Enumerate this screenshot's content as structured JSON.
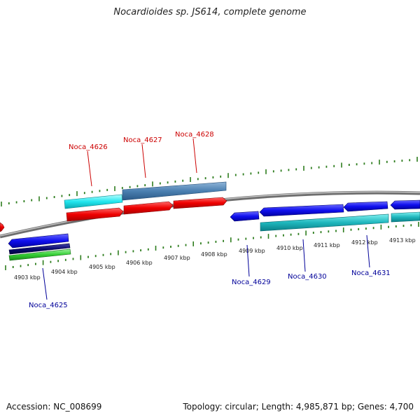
{
  "title": "Nocardioides sp. JS614, complete genome",
  "footer": {
    "accession": "Accession: NC_008699",
    "summary": "Topology: circular; Length: 4,985,871 bp; Genes: 4,700"
  },
  "colors": {
    "forward_label": "#cc0000",
    "reverse_label": "#000099",
    "tick": "#2e7d1e",
    "backbone": "#8a8a8a"
  },
  "tick_labels": [
    "4903 kbp",
    "4904 kbp",
    "4905 kbp",
    "4906 kbp",
    "4907 kbp",
    "4908 kbp",
    "4909 kbp",
    "4910 kbp",
    "4911 kbp",
    "4912 kbp",
    "4913 kbp"
  ],
  "gene_labels": [
    {
      "name": "Noca_4625",
      "strand": "reverse"
    },
    {
      "name": "Noca_4626",
      "strand": "forward"
    },
    {
      "name": "Noca_4627",
      "strand": "forward"
    },
    {
      "name": "Noca_4628",
      "strand": "forward"
    },
    {
      "name": "Noca_4629",
      "strand": "reverse"
    },
    {
      "name": "Noca_4630",
      "strand": "reverse"
    },
    {
      "name": "Noca_4631",
      "strand": "reverse"
    }
  ]
}
